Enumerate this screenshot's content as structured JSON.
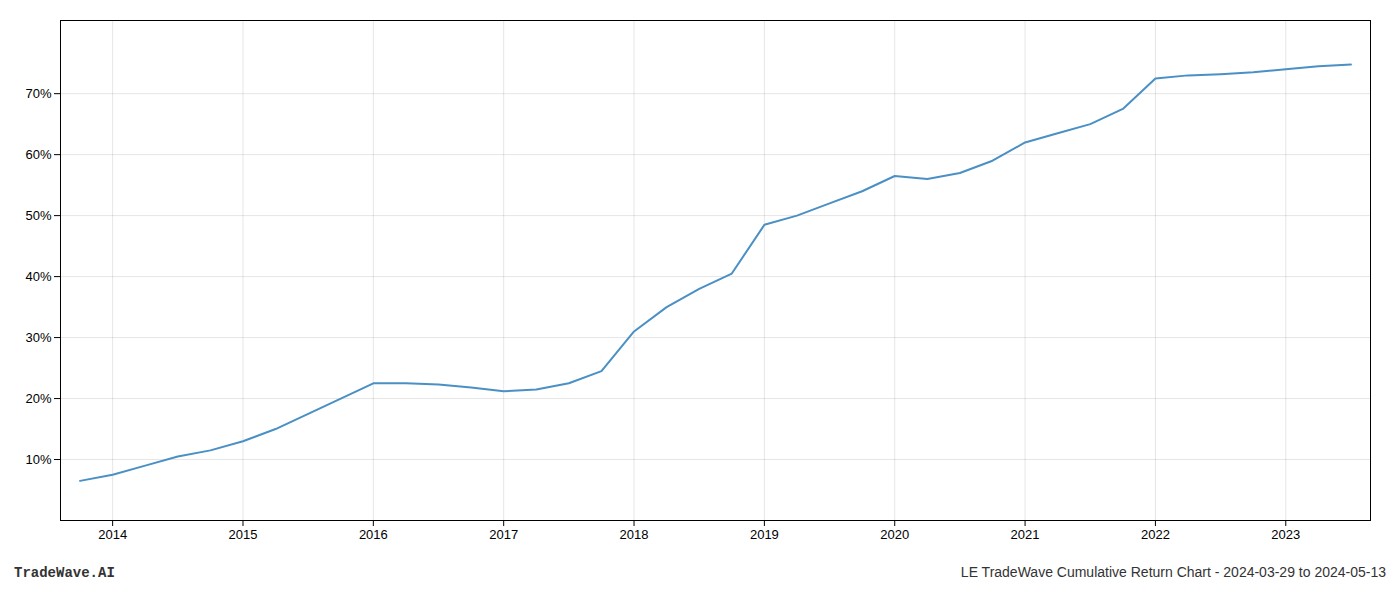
{
  "chart_data": {
    "type": "line",
    "annotations": [
      "TradeWave.AI",
      "LE TradeWave Cumulative Return Chart - 2024-03-29 to 2024-05-13"
    ],
    "x": [
      2013.75,
      2014.0,
      2014.25,
      2014.5,
      2014.75,
      2015.0,
      2015.25,
      2015.5,
      2015.75,
      2016.0,
      2016.25,
      2016.5,
      2016.75,
      2017.0,
      2017.25,
      2017.5,
      2017.75,
      2018.0,
      2018.25,
      2018.5,
      2018.75,
      2019.0,
      2019.25,
      2019.5,
      2019.75,
      2020.0,
      2020.25,
      2020.5,
      2020.75,
      2021.0,
      2021.25,
      2021.5,
      2021.75,
      2022.0,
      2022.25,
      2022.5,
      2022.75,
      2023.0,
      2023.25,
      2023.5
    ],
    "values": [
      6.5,
      7.5,
      9.0,
      10.5,
      11.5,
      13.0,
      15.0,
      17.5,
      20.0,
      22.5,
      22.5,
      22.3,
      21.8,
      21.2,
      21.5,
      22.5,
      24.5,
      31.0,
      35.0,
      38.0,
      40.5,
      48.5,
      50.0,
      52.0,
      54.0,
      56.5,
      56.0,
      57.0,
      59.0,
      62.0,
      63.5,
      65.0,
      67.5,
      72.5,
      73.0,
      73.2,
      73.5,
      74.0,
      74.5,
      74.8
    ],
    "color": "#4a90c4",
    "xlim": [
      2013.6,
      2023.65
    ],
    "xticks": [
      2014,
      2015,
      2016,
      2017,
      2018,
      2019,
      2020,
      2021,
      2022,
      2023
    ],
    "ylim": [
      0,
      82
    ],
    "yticks": [
      {
        "value": 10,
        "label": "10%"
      },
      {
        "value": 20,
        "label": "20%"
      },
      {
        "value": 30,
        "label": "30%"
      },
      {
        "value": 40,
        "label": "40%"
      },
      {
        "value": 50,
        "label": "50%"
      },
      {
        "value": 60,
        "label": "60%"
      },
      {
        "value": 70,
        "label": "70%"
      }
    ],
    "grid": true
  }
}
